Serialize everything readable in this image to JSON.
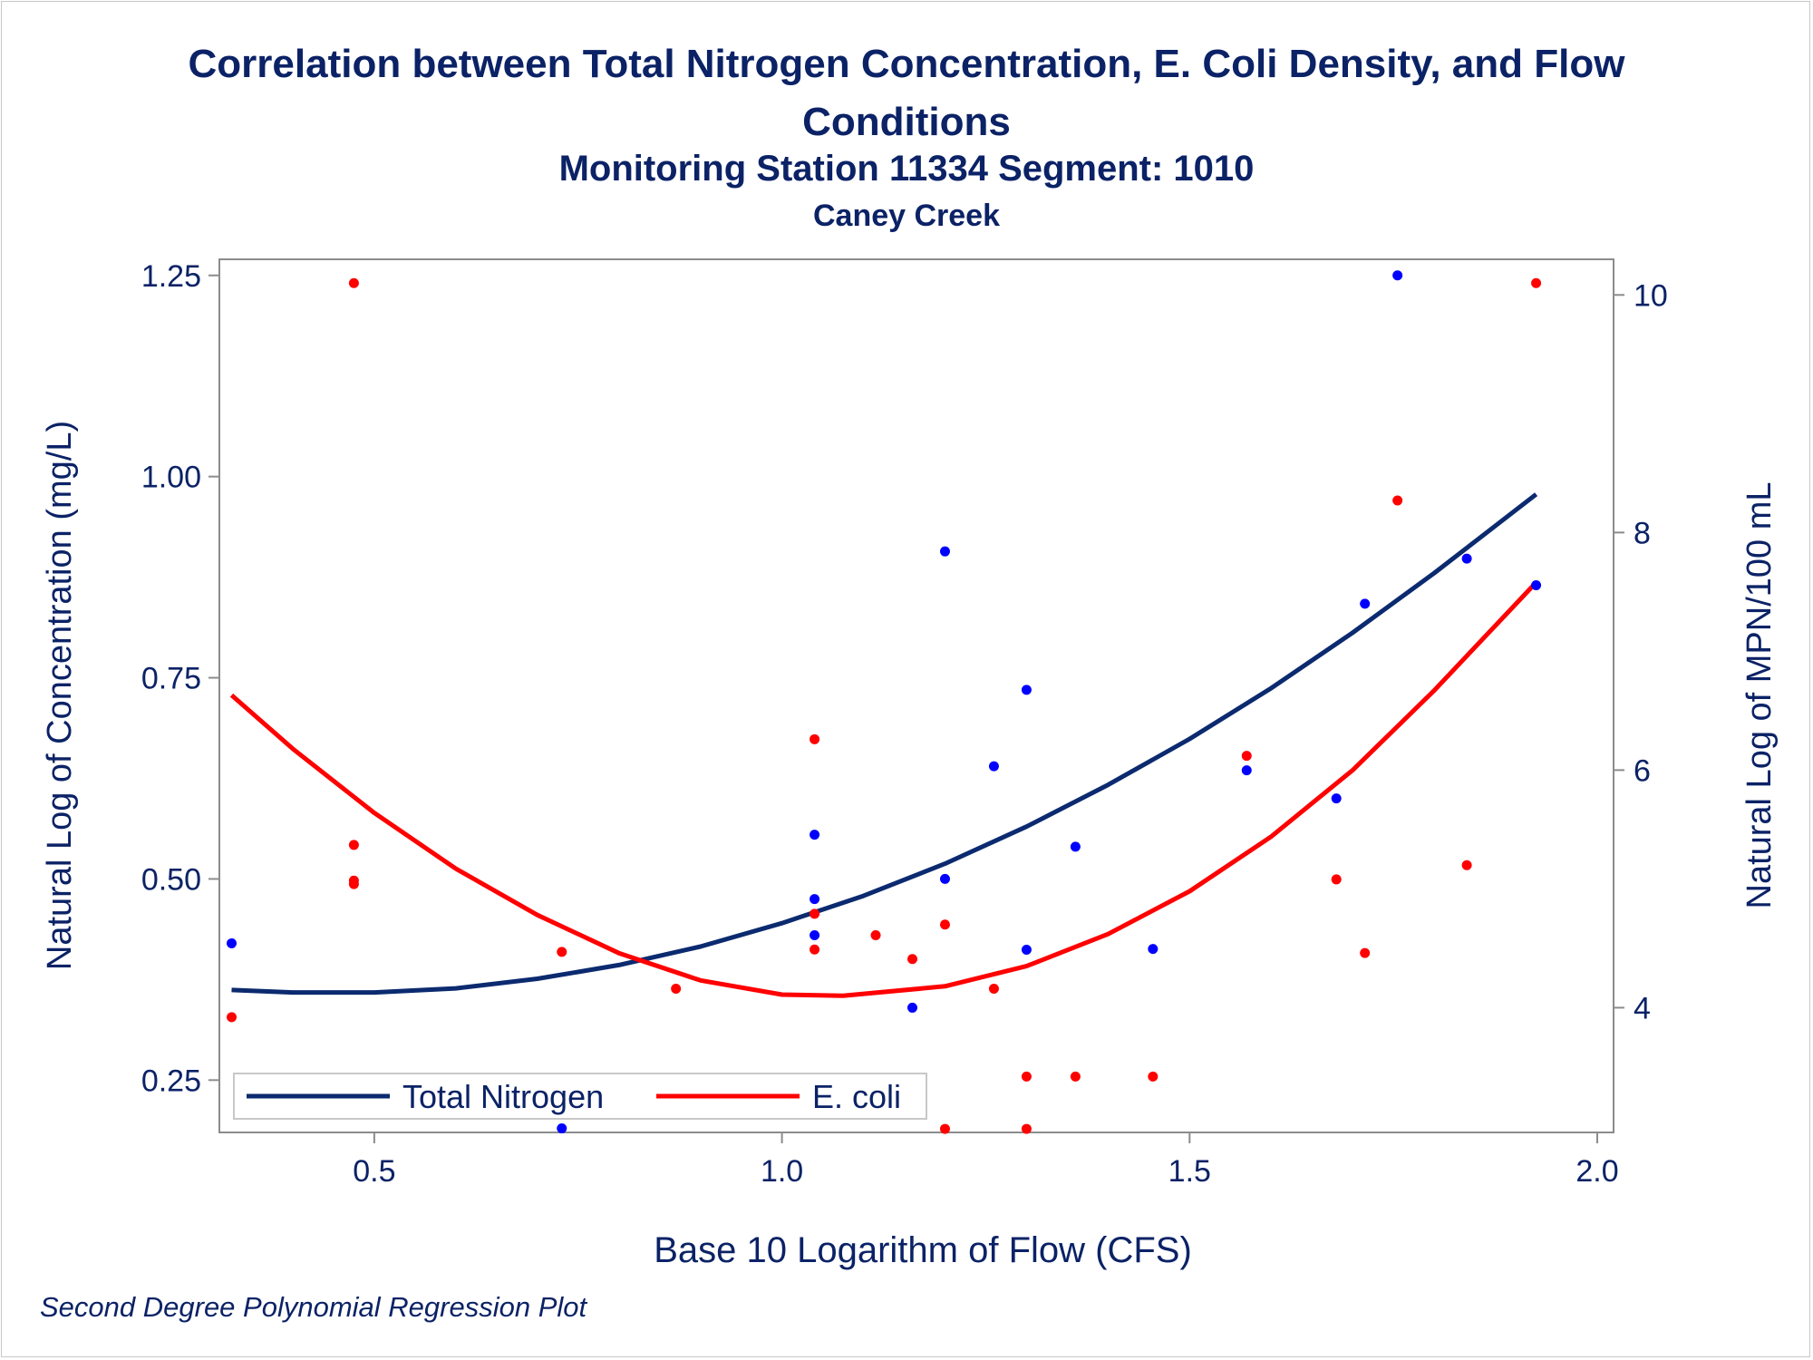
{
  "title_line1": "Correlation between Total Nitrogen Concentration, E. Coli Density, and Flow",
  "title_line2": "Conditions",
  "subtitle": "Monitoring Station 11334 Segment: 1010",
  "subtitle2": "Caney Creek",
  "footnote": "Second Degree Polynomial Regression Plot",
  "chart_data": {
    "type": "scatter",
    "xlabel": "Base 10 Logarithm of Flow (CFS)",
    "ylabel": "Natural Log of Concentration (mg/L)",
    "y2label": "Natural Log of MPN/100 mL",
    "xlim": [
      0.31,
      2.02
    ],
    "ylim": [
      0.185,
      1.27
    ],
    "y2lim": [
      2.95,
      10.3
    ],
    "xticks": [
      0.5,
      1.0,
      1.5,
      2.0
    ],
    "xtick_labels": [
      "0.5",
      "1.0",
      "1.5",
      "2.0"
    ],
    "yticks": [
      0.25,
      0.5,
      0.75,
      1.0,
      1.25
    ],
    "ytick_labels": [
      "0.25",
      "0.50",
      "0.75",
      "1.00",
      "1.25"
    ],
    "y2ticks": [
      4,
      6,
      8,
      10
    ],
    "y2tick_labels": [
      "4",
      "6",
      "8",
      "10"
    ],
    "colors": {
      "nitrogen": "#0b2a6f",
      "ecoli": "#ff0000",
      "nitrogen_points": "#0000ff",
      "ecoli_points": "#ff0000",
      "text": "#0b2266",
      "axis": "#8c8c8c"
    },
    "legend": {
      "position": "bottom-left",
      "entries": [
        "Total Nitrogen",
        "E. coli"
      ]
    },
    "series": [
      {
        "name": "Total Nitrogen",
        "kind": "scatter",
        "axis": "left",
        "points": [
          {
            "x": 0.325,
            "y": 0.42
          },
          {
            "x": 0.73,
            "y": 0.19
          },
          {
            "x": 1.04,
            "y": 0.555
          },
          {
            "x": 1.04,
            "y": 0.475
          },
          {
            "x": 1.04,
            "y": 0.43
          },
          {
            "x": 1.16,
            "y": 0.34
          },
          {
            "x": 1.2,
            "y": 0.907
          },
          {
            "x": 1.2,
            "y": 0.5
          },
          {
            "x": 1.26,
            "y": 0.64
          },
          {
            "x": 1.3,
            "y": 0.735
          },
          {
            "x": 1.3,
            "y": 0.412
          },
          {
            "x": 1.36,
            "y": 0.54
          },
          {
            "x": 1.455,
            "y": 0.413
          },
          {
            "x": 1.57,
            "y": 0.635
          },
          {
            "x": 1.68,
            "y": 0.6
          },
          {
            "x": 1.715,
            "y": 0.842
          },
          {
            "x": 1.755,
            "y": 1.25
          },
          {
            "x": 1.84,
            "y": 0.898
          },
          {
            "x": 1.925,
            "y": 0.865
          }
        ]
      },
      {
        "name": "E. coli",
        "kind": "scatter",
        "axis": "right",
        "points": [
          {
            "x": 0.325,
            "y": 3.92
          },
          {
            "x": 0.475,
            "y": 10.1
          },
          {
            "x": 0.475,
            "y": 5.37
          },
          {
            "x": 0.475,
            "y": 5.07
          },
          {
            "x": 0.475,
            "y": 5.04
          },
          {
            "x": 0.73,
            "y": 4.47
          },
          {
            "x": 0.87,
            "y": 4.16
          },
          {
            "x": 1.04,
            "y": 6.26
          },
          {
            "x": 1.04,
            "y": 4.79
          },
          {
            "x": 1.04,
            "y": 4.49
          },
          {
            "x": 1.115,
            "y": 4.61
          },
          {
            "x": 1.16,
            "y": 4.41
          },
          {
            "x": 1.2,
            "y": 4.7
          },
          {
            "x": 1.2,
            "y": 2.98
          },
          {
            "x": 1.26,
            "y": 4.16
          },
          {
            "x": 1.3,
            "y": 3.42
          },
          {
            "x": 1.3,
            "y": 2.98
          },
          {
            "x": 1.36,
            "y": 3.42
          },
          {
            "x": 1.455,
            "y": 3.42
          },
          {
            "x": 1.57,
            "y": 6.12
          },
          {
            "x": 1.68,
            "y": 5.08
          },
          {
            "x": 1.715,
            "y": 4.46
          },
          {
            "x": 1.755,
            "y": 8.27
          },
          {
            "x": 1.84,
            "y": 5.2
          },
          {
            "x": 1.925,
            "y": 10.1
          }
        ]
      },
      {
        "name": "Total Nitrogen",
        "kind": "line",
        "axis": "left",
        "points": [
          {
            "x": 0.325,
            "y": 0.362
          },
          {
            "x": 0.4,
            "y": 0.359
          },
          {
            "x": 0.5,
            "y": 0.359
          },
          {
            "x": 0.6,
            "y": 0.364
          },
          {
            "x": 0.7,
            "y": 0.376
          },
          {
            "x": 0.8,
            "y": 0.393
          },
          {
            "x": 0.9,
            "y": 0.416
          },
          {
            "x": 1.0,
            "y": 0.445
          },
          {
            "x": 1.1,
            "y": 0.479
          },
          {
            "x": 1.2,
            "y": 0.519
          },
          {
            "x": 1.3,
            "y": 0.565
          },
          {
            "x": 1.4,
            "y": 0.617
          },
          {
            "x": 1.5,
            "y": 0.674
          },
          {
            "x": 1.6,
            "y": 0.737
          },
          {
            "x": 1.7,
            "y": 0.806
          },
          {
            "x": 1.8,
            "y": 0.88
          },
          {
            "x": 1.925,
            "y": 0.978
          }
        ]
      },
      {
        "name": "E. coli",
        "kind": "line",
        "axis": "right",
        "points": [
          {
            "x": 0.325,
            "y": 6.63
          },
          {
            "x": 0.4,
            "y": 6.18
          },
          {
            "x": 0.5,
            "y": 5.64
          },
          {
            "x": 0.6,
            "y": 5.17
          },
          {
            "x": 0.7,
            "y": 4.78
          },
          {
            "x": 0.8,
            "y": 4.46
          },
          {
            "x": 0.9,
            "y": 4.23
          },
          {
            "x": 1.0,
            "y": 4.11
          },
          {
            "x": 1.075,
            "y": 4.1
          },
          {
            "x": 1.2,
            "y": 4.18
          },
          {
            "x": 1.3,
            "y": 4.35
          },
          {
            "x": 1.4,
            "y": 4.62
          },
          {
            "x": 1.5,
            "y": 4.98
          },
          {
            "x": 1.6,
            "y": 5.44
          },
          {
            "x": 1.7,
            "y": 6.0
          },
          {
            "x": 1.8,
            "y": 6.67
          },
          {
            "x": 1.925,
            "y": 7.58
          }
        ]
      }
    ]
  }
}
